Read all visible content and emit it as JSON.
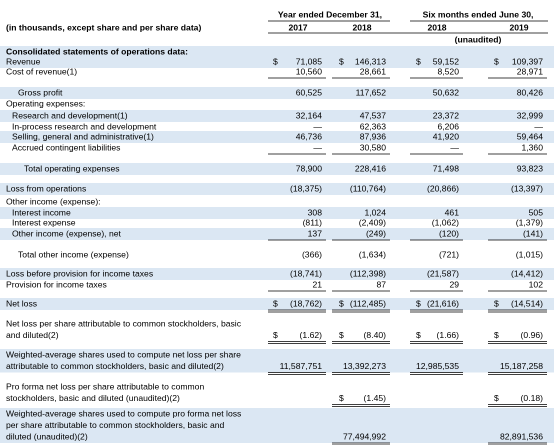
{
  "header": {
    "caption": "(in thousands, except share and per share data)",
    "groups": [
      "Year ended December 31,",
      "Six months ended June 30,"
    ],
    "years": [
      "2017",
      "2018",
      "2018",
      "2019"
    ],
    "note": "(unaudited)"
  },
  "table": {
    "rows": [
      {
        "label": [
          "Consolidated statements of operations data:"
        ]
      },
      {
        "label": [
          "Revenue"
        ],
        "currency": "$",
        "values": [
          "71,085",
          "146,313",
          "59,152",
          "109,397"
        ]
      },
      {
        "label": [
          "Cost of revenue(1)"
        ],
        "values": [
          "10,560",
          "28,661",
          "8,520",
          "28,971"
        ]
      },
      {
        "label": [
          "Gross profit"
        ],
        "values": [
          "60,525",
          "117,652",
          "50,632",
          "80,426"
        ]
      },
      {
        "label": [
          "Operating expenses:"
        ]
      },
      {
        "label": [
          "Research and development(1)"
        ],
        "values": [
          "32,164",
          "47,537",
          "23,372",
          "32,999"
        ]
      },
      {
        "label": [
          "In-process research and development"
        ],
        "values": [
          "—",
          "62,363",
          "6,206",
          "—"
        ]
      },
      {
        "label": [
          "Selling, general and administrative(1)"
        ],
        "values": [
          "46,736",
          "87,936",
          "41,920",
          "59,464"
        ]
      },
      {
        "label": [
          "Accrued contingent liabilities"
        ],
        "values": [
          "—",
          "30,580",
          "—",
          "1,360"
        ]
      },
      {
        "label": [
          "Total operating expenses"
        ],
        "values": [
          "78,900",
          "228,416",
          "71,498",
          "93,823"
        ]
      },
      {
        "label": [
          "Loss from operations"
        ],
        "values": [
          "(18,375)",
          "(110,764)",
          "(20,866)",
          "(13,397)"
        ]
      },
      {
        "label": [
          "Other income (expense):"
        ]
      },
      {
        "label": [
          "Interest income"
        ],
        "values": [
          "308",
          "1,024",
          "461",
          "505"
        ]
      },
      {
        "label": [
          "Interest expense"
        ],
        "values": [
          "(811)",
          "(2,409)",
          "(1,062)",
          "(1,379)"
        ]
      },
      {
        "label": [
          "Other income (expense), net"
        ],
        "values": [
          "137",
          "(249)",
          "(120)",
          "(141)"
        ]
      },
      {
        "label": [
          "Total other income (expense)"
        ],
        "values": [
          "(366)",
          "(1,634)",
          "(721)",
          "(1,015)"
        ]
      },
      {
        "label": [
          "Loss before provision for income taxes"
        ],
        "values": [
          "(18,741)",
          "(112,398)",
          "(21,587)",
          "(14,412)"
        ]
      },
      {
        "label": [
          "Provision for income taxes"
        ],
        "values": [
          "21",
          "87",
          "29",
          "102"
        ]
      },
      {
        "label": [
          "Net loss"
        ],
        "currency": "$",
        "values": [
          "(18,762)",
          "(112,485)",
          "(21,616)",
          "(14,514)"
        ]
      },
      {
        "label": [
          "Net loss per share attributable to common stockholders, basic",
          "and diluted(2)"
        ],
        "currency": "$",
        "values": [
          "(1.62)",
          "(8.40)",
          "(1.66)",
          "(0.96)"
        ]
      },
      {
        "label": [
          "Weighted-average shares used to compute net loss per share",
          "attributable to common stockholders, basic and diluted(2)"
        ],
        "values": [
          "11,587,751",
          "13,392,273",
          "12,985,535",
          "15,187,258"
        ]
      },
      {
        "label": [
          "Pro forma net loss per share attributable to common",
          "stockholders, basic and diluted (unaudited)(2)"
        ],
        "currency": "$",
        "values": [
          null,
          "(1.45)",
          null,
          "(0.18)"
        ]
      },
      {
        "label": [
          "Weighted-average shares used to compute pro forma net loss",
          "per share attributable to common stockholders, basic and",
          "diluted (unaudited)(2)"
        ],
        "values": [
          null,
          "77,494,992",
          null,
          "82,891,536"
        ]
      }
    ]
  }
}
